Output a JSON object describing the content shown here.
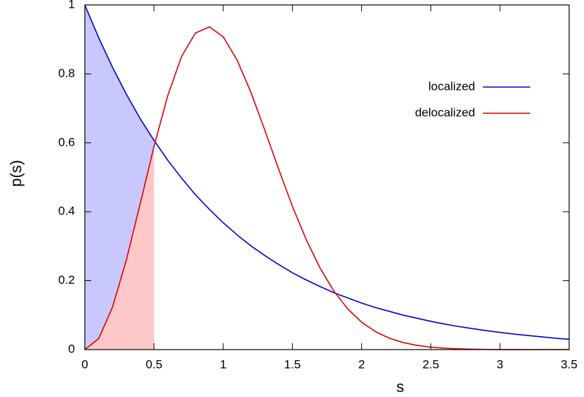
{
  "chart_data": {
    "type": "line",
    "x_label": "s",
    "y_label": "p(s)",
    "x": [
      0,
      0.1,
      0.2,
      0.3,
      0.4,
      0.5,
      0.6,
      0.7,
      0.8,
      0.9,
      1.0,
      1.1,
      1.2,
      1.3,
      1.4,
      1.5,
      1.6,
      1.7,
      1.8,
      1.9,
      2.0,
      2.1,
      2.2,
      2.3,
      2.4,
      2.5,
      2.6,
      2.7,
      2.8,
      2.9,
      3.0,
      3.1,
      3.2,
      3.3,
      3.4,
      3.5
    ],
    "series": [
      {
        "name": "localized",
        "color": "#0000cc",
        "fill_color": "#c8c8ff",
        "values": [
          1,
          0.905,
          0.819,
          0.741,
          0.67,
          0.607,
          0.549,
          0.497,
          0.449,
          0.407,
          0.368,
          0.333,
          0.301,
          0.273,
          0.247,
          0.223,
          0.202,
          0.183,
          0.165,
          0.15,
          0.135,
          0.122,
          0.111,
          0.1,
          0.091,
          0.082,
          0.074,
          0.067,
          0.061,
          0.055,
          0.05,
          0.045,
          0.041,
          0.037,
          0.033,
          0.03
        ]
      },
      {
        "name": "delocalized",
        "color": "#dd0000",
        "fill_color": "#ffc8c8",
        "values": [
          0,
          0.032,
          0.1233,
          0.2602,
          0.4232,
          0.5896,
          0.738,
          0.8514,
          0.9187,
          0.9363,
          0.9075,
          0.8404,
          0.7465,
          0.6373,
          0.524,
          0.4158,
          0.3189,
          0.2364,
          0.1698,
          0.1181,
          0.0797,
          0.0521,
          0.0331,
          0.0204,
          0.0122,
          0.0071,
          0.004,
          0.0022,
          0.0011,
          0.0005,
          0.0002,
          0.0001,
          0,
          0,
          0,
          0
        ]
      }
    ],
    "shade_xmax": 0.5,
    "xlim": [
      0,
      3.5
    ],
    "xticks": [
      0,
      0.5,
      1,
      1.5,
      2,
      2.5,
      3,
      3.5
    ],
    "ylim": [
      0,
      1
    ],
    "yticks": [
      0,
      0.2,
      0.4,
      0.6,
      0.8,
      1
    ],
    "grid": false,
    "legend": "upper right"
  }
}
